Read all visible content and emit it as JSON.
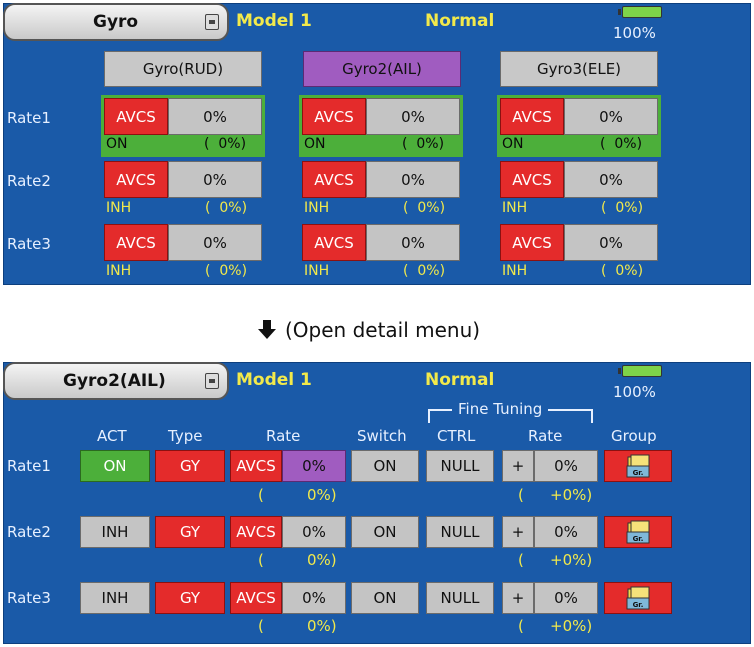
{
  "top": {
    "title": "Gyro",
    "model": "Model 1",
    "condition": "Normal",
    "battery": "100%",
    "headers": [
      "Gyro(RUD)",
      "Gyro2(AIL)",
      "Gyro3(ELE)"
    ],
    "rows": [
      {
        "label": "Rate1",
        "mode": "AVCS",
        "value": "0%",
        "status": "ON",
        "paren": "(  0%)"
      },
      {
        "label": "Rate2",
        "mode": "AVCS",
        "value": "0%",
        "status": "INH",
        "paren": "(  0%)"
      },
      {
        "label": "Rate3",
        "mode": "AVCS",
        "value": "0%",
        "status": "INH",
        "paren": "(  0%)"
      }
    ]
  },
  "caption": "(Open detail menu)",
  "bottom": {
    "title": "Gyro2(AIL)",
    "model": "Model 1",
    "condition": "Normal",
    "battery": "100%",
    "fine_tuning": "Fine Tuning",
    "col_headers": {
      "act": "ACT",
      "type": "Type",
      "rate": "Rate",
      "switch": "Switch",
      "ctrl": "CTRL",
      "ft_rate": "Rate",
      "group": "Group"
    },
    "rows": [
      {
        "label": "Rate1",
        "act": "ON",
        "type": "GY",
        "mode": "AVCS",
        "rate": "0%",
        "switch": "ON",
        "ctrl": "NULL",
        "sign": "+",
        "ft_rate": "0%",
        "rate_paren_open": "(",
        "rate_paren": "0%)",
        "ft_paren_open": "(",
        "ft_paren": "+0%)",
        "group": "Gr."
      },
      {
        "label": "Rate2",
        "act": "INH",
        "type": "GY",
        "mode": "AVCS",
        "rate": "0%",
        "switch": "ON",
        "ctrl": "NULL",
        "sign": "+",
        "ft_rate": "0%",
        "rate_paren_open": "(",
        "rate_paren": "0%)",
        "ft_paren_open": "(",
        "ft_paren": "+0%)",
        "group": "Gr."
      },
      {
        "label": "Rate3",
        "act": "INH",
        "type": "GY",
        "mode": "AVCS",
        "rate": "0%",
        "switch": "ON",
        "ctrl": "NULL",
        "sign": "+",
        "ft_rate": "0%",
        "rate_paren_open": "(",
        "rate_paren": "0%)",
        "ft_paren_open": "(",
        "ft_paren": "+0%)",
        "group": "Gr."
      }
    ]
  }
}
